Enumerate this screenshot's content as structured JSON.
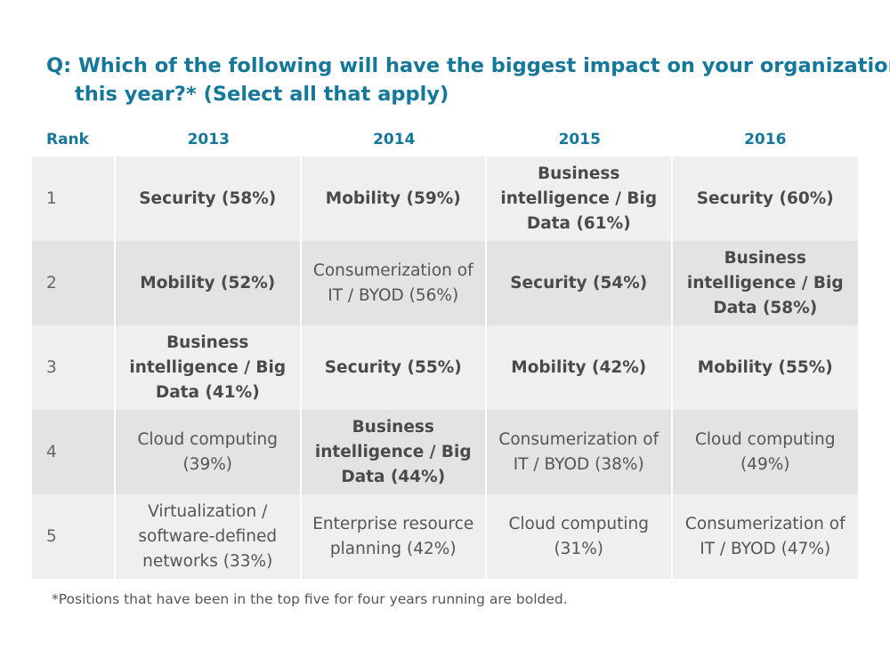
{
  "title": "Q: Which of the following will have the biggest impact on your organization this year?* (Select all that apply)",
  "footnote": "*Positions that have been in the top five for four years running are bolded.",
  "chart_data": {
    "type": "table",
    "columns": [
      "Rank",
      "2013",
      "2014",
      "2015",
      "2016"
    ],
    "rows": [
      {
        "rank": "1",
        "cells": [
          {
            "text": "Security (58%)",
            "bold": true
          },
          {
            "text": "Mobility (59%)",
            "bold": true
          },
          {
            "text": "Business intelligence / Big Data (61%)",
            "bold": true
          },
          {
            "text": "Security (60%)",
            "bold": true
          }
        ]
      },
      {
        "rank": "2",
        "cells": [
          {
            "text": "Mobility (52%)",
            "bold": true
          },
          {
            "text": "Consumerization of IT / BYOD (56%)",
            "bold": false
          },
          {
            "text": "Security (54%)",
            "bold": true
          },
          {
            "text": "Business intelligence / Big Data (58%)",
            "bold": true
          }
        ]
      },
      {
        "rank": "3",
        "cells": [
          {
            "text": "Business intelligence / Big Data (41%)",
            "bold": true
          },
          {
            "text": "Security (55%)",
            "bold": true
          },
          {
            "text": "Mobility (42%)",
            "bold": true
          },
          {
            "text": "Mobility (55%)",
            "bold": true
          }
        ]
      },
      {
        "rank": "4",
        "cells": [
          {
            "text": "Cloud computing (39%)",
            "bold": false
          },
          {
            "text": "Business intelligence / Big Data (44%)",
            "bold": true
          },
          {
            "text": "Consumerization of IT / BYOD (38%)",
            "bold": false
          },
          {
            "text": "Cloud computing (49%)",
            "bold": false
          }
        ]
      },
      {
        "rank": "5",
        "cells": [
          {
            "text": "Virtualization / software-defined networks (33%)",
            "bold": false
          },
          {
            "text": "Enterprise resource planning (42%)",
            "bold": false
          },
          {
            "text": "Cloud computing (31%)",
            "bold": false
          },
          {
            "text": "Consumerization of IT / BYOD (47%)",
            "bold": false
          }
        ]
      }
    ]
  },
  "colors": {
    "accent": "#15789a",
    "row_light": "#efefef",
    "row_dark": "#e3e3e3",
    "text": "#555555"
  }
}
